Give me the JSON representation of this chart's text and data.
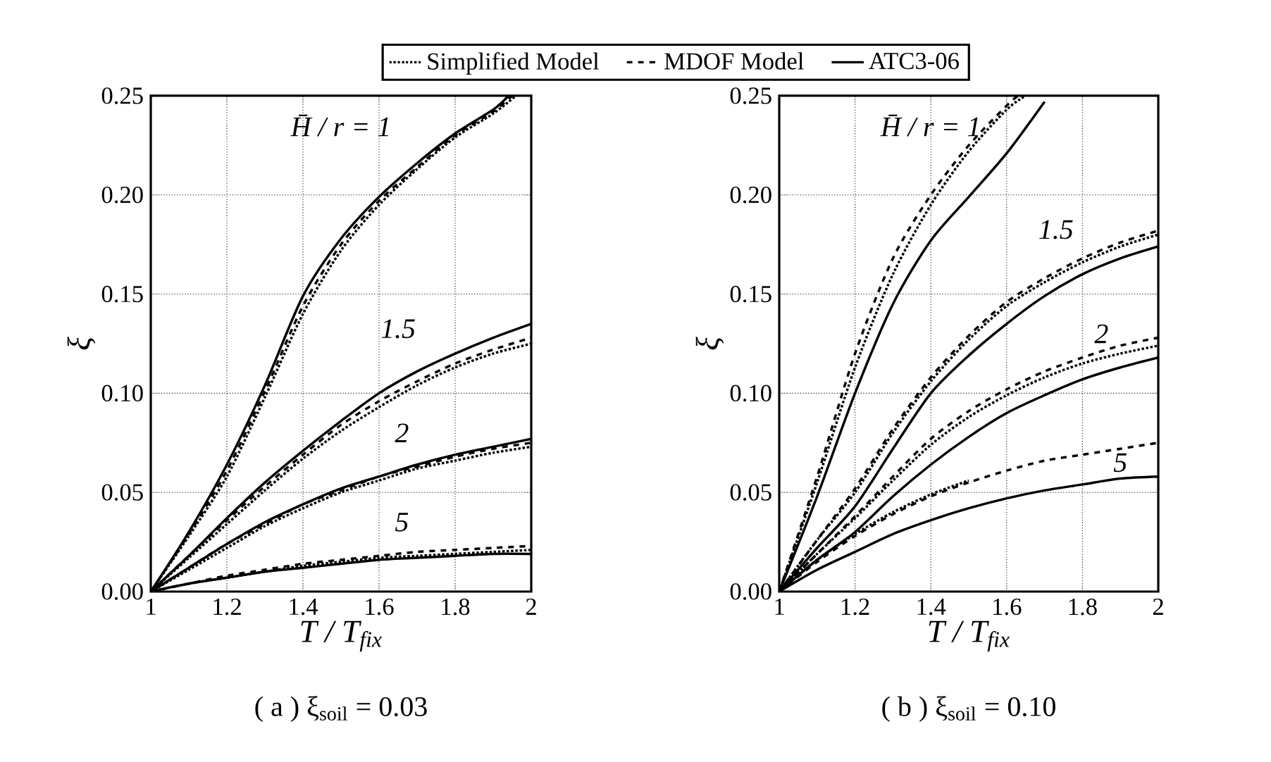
{
  "chart_data": [
    {
      "type": "line",
      "title": "( a )  ξ$_{soil}$ = 0.03",
      "xlabel": "T / T$_{fix}$",
      "ylabel": "ξ",
      "xlim": [
        1,
        2
      ],
      "ylim": [
        0,
        0.25
      ],
      "xticks": [
        1,
        1.2,
        1.4,
        1.6,
        1.8,
        2
      ],
      "yticks": [
        {
          "value": 0,
          "label": "0.00"
        },
        {
          "value": 0.05,
          "label": "0.05"
        },
        {
          "value": 0.1,
          "label": "0.10"
        },
        {
          "value": 0.15,
          "label": "0.15"
        },
        {
          "value": 0.2,
          "label": "0.20"
        },
        {
          "value": 0.25,
          "label": "0.25"
        }
      ],
      "grid": true,
      "legend": "top",
      "marker": "none",
      "annotations": [
        "H̄ / r = 1",
        "1.5",
        "2",
        "5"
      ],
      "series": [
        {
          "name": "Simplified Model",
          "color": "#000000",
          "line_style": "dotted",
          "x": [
            1,
            1.1,
            1.2,
            1.3,
            1.4,
            1.5,
            1.6,
            1.7,
            1.8,
            1.9,
            1.96
          ],
          "values": [
            0,
            0.028,
            0.058,
            0.098,
            0.14,
            0.172,
            0.195,
            0.213,
            0.229,
            0.241,
            0.25
          ]
        },
        {
          "name": "MDOF Model",
          "color": "#000000",
          "line_style": "dashed",
          "x": [
            1,
            1.1,
            1.2,
            1.3,
            1.4,
            1.5,
            1.6,
            1.7,
            1.8,
            1.9,
            1.95
          ],
          "values": [
            0,
            0.029,
            0.061,
            0.101,
            0.144,
            0.175,
            0.197,
            0.214,
            0.23,
            0.242,
            0.25
          ]
        },
        {
          "name": "ATC3-06",
          "color": "#000000",
          "line_style": "solid",
          "x": [
            1,
            1.1,
            1.2,
            1.3,
            1.4,
            1.5,
            1.6,
            1.7,
            1.8,
            1.9,
            1.94
          ],
          "values": [
            0,
            0.03,
            0.064,
            0.104,
            0.149,
            0.178,
            0.199,
            0.216,
            0.231,
            0.243,
            0.25
          ]
        },
        {
          "color": "#000000",
          "line_style": "dotted",
          "x": [
            1,
            1.1,
            1.2,
            1.3,
            1.4,
            1.5,
            1.6,
            1.7,
            1.8,
            1.9,
            2
          ],
          "values": [
            0,
            0.017,
            0.034,
            0.051,
            0.067,
            0.081,
            0.093,
            0.104,
            0.113,
            0.12,
            0.125
          ]
        },
        {
          "color": "#000000",
          "line_style": "dashed",
          "x": [
            1,
            1.1,
            1.2,
            1.3,
            1.4,
            1.5,
            1.6,
            1.7,
            1.8,
            1.9,
            2
          ],
          "values": [
            0,
            0.018,
            0.036,
            0.053,
            0.069,
            0.084,
            0.096,
            0.106,
            0.115,
            0.122,
            0.128
          ]
        },
        {
          "color": "#000000",
          "line_style": "solid",
          "x": [
            1,
            1.1,
            1.2,
            1.3,
            1.4,
            1.5,
            1.6,
            1.7,
            1.8,
            1.9,
            2
          ],
          "values": [
            0,
            0.018,
            0.037,
            0.055,
            0.071,
            0.086,
            0.1,
            0.111,
            0.12,
            0.128,
            0.135
          ]
        },
        {
          "color": "#000000",
          "line_style": "dotted",
          "x": [
            1,
            1.1,
            1.2,
            1.3,
            1.4,
            1.5,
            1.6,
            1.7,
            1.8,
            1.9,
            2
          ],
          "values": [
            0,
            0.011,
            0.022,
            0.033,
            0.042,
            0.05,
            0.056,
            0.062,
            0.066,
            0.07,
            0.073
          ]
        },
        {
          "color": "#000000",
          "line_style": "dashed",
          "x": [
            1,
            1.1,
            1.2,
            1.3,
            1.4,
            1.5,
            1.6,
            1.7,
            1.8,
            1.9,
            2
          ],
          "values": [
            0,
            0.012,
            0.024,
            0.034,
            0.044,
            0.051,
            0.058,
            0.063,
            0.068,
            0.072,
            0.075
          ]
        },
        {
          "color": "#000000",
          "line_style": "solid",
          "x": [
            1,
            1.1,
            1.2,
            1.3,
            1.4,
            1.5,
            1.6,
            1.7,
            1.8,
            1.9,
            2
          ],
          "values": [
            0,
            0.012,
            0.024,
            0.035,
            0.044,
            0.052,
            0.058,
            0.064,
            0.069,
            0.073,
            0.077
          ]
        },
        {
          "color": "#000000",
          "line_style": "dotted",
          "x": [
            1,
            1.1,
            1.2,
            1.3,
            1.4,
            1.5,
            1.6,
            1.7,
            1.8,
            1.9,
            2
          ],
          "values": [
            0,
            0.004,
            0.007,
            0.01,
            0.013,
            0.015,
            0.017,
            0.018,
            0.019,
            0.02,
            0.021
          ]
        },
        {
          "color": "#000000",
          "line_style": "dashed",
          "x": [
            1,
            1.1,
            1.2,
            1.3,
            1.4,
            1.5,
            1.6,
            1.7,
            1.8,
            1.9,
            2
          ],
          "values": [
            0,
            0.004,
            0.008,
            0.011,
            0.014,
            0.016,
            0.018,
            0.02,
            0.021,
            0.022,
            0.023
          ]
        },
        {
          "color": "#000000",
          "line_style": "solid",
          "x": [
            1,
            1.1,
            1.2,
            1.3,
            1.4,
            1.5,
            1.6,
            1.7,
            1.8,
            1.9,
            2
          ],
          "values": [
            0,
            0.004,
            0.007,
            0.01,
            0.012,
            0.014,
            0.016,
            0.017,
            0.018,
            0.019,
            0.019
          ]
        }
      ]
    },
    {
      "type": "line",
      "title": "( b )  ξ$_{soil}$ = 0.10",
      "xlabel": "T / T$_{fix}$",
      "ylabel": "ξ",
      "xlim": [
        1,
        2
      ],
      "ylim": [
        0,
        0.25
      ],
      "xticks": [
        1,
        1.2,
        1.4,
        1.6,
        1.8,
        2
      ],
      "yticks": [
        {
          "value": 0,
          "label": "0.00"
        },
        {
          "value": 0.05,
          "label": "0.05"
        },
        {
          "value": 0.1,
          "label": "0.10"
        },
        {
          "value": 0.15,
          "label": "0.15"
        },
        {
          "value": 0.2,
          "label": "0.20"
        },
        {
          "value": 0.25,
          "label": "0.25"
        }
      ],
      "grid": true,
      "marker": "none",
      "annotations": [
        "H̄ / r = 1",
        "1.5",
        "2",
        "5"
      ],
      "series": [
        {
          "color": "#000000",
          "line_style": "dotted",
          "x": [
            1,
            1.1,
            1.2,
            1.3,
            1.4,
            1.5,
            1.6,
            1.65
          ],
          "values": [
            0,
            0.055,
            0.113,
            0.16,
            0.195,
            0.222,
            0.243,
            0.25
          ]
        },
        {
          "color": "#000000",
          "line_style": "dashed",
          "x": [
            1,
            1.1,
            1.2,
            1.3,
            1.4,
            1.5,
            1.6,
            1.63
          ],
          "values": [
            0,
            0.058,
            0.12,
            0.168,
            0.2,
            0.225,
            0.245,
            0.25
          ]
        },
        {
          "color": "#000000",
          "line_style": "solid",
          "x": [
            1,
            1.1,
            1.2,
            1.3,
            1.4,
            1.5,
            1.6,
            1.7
          ],
          "values": [
            0,
            0.048,
            0.1,
            0.145,
            0.177,
            0.199,
            0.221,
            0.247
          ]
        },
        {
          "color": "#000000",
          "line_style": "dotted",
          "x": [
            1,
            1.1,
            1.2,
            1.3,
            1.4,
            1.5,
            1.6,
            1.7,
            1.8,
            1.9,
            2
          ],
          "values": [
            0,
            0.026,
            0.05,
            0.08,
            0.106,
            0.127,
            0.144,
            0.156,
            0.166,
            0.174,
            0.18
          ]
        },
        {
          "color": "#000000",
          "line_style": "dashed",
          "x": [
            1,
            1.1,
            1.2,
            1.3,
            1.4,
            1.5,
            1.6,
            1.7,
            1.8,
            1.9,
            2
          ],
          "values": [
            0,
            0.026,
            0.052,
            0.082,
            0.108,
            0.129,
            0.146,
            0.158,
            0.168,
            0.176,
            0.182
          ]
        },
        {
          "color": "#000000",
          "line_style": "solid",
          "x": [
            1,
            1.1,
            1.2,
            1.3,
            1.4,
            1.5,
            1.6,
            1.7,
            1.8,
            1.9,
            2
          ],
          "values": [
            0,
            0.022,
            0.043,
            0.072,
            0.1,
            0.119,
            0.135,
            0.149,
            0.16,
            0.168,
            0.174
          ]
        },
        {
          "color": "#000000",
          "line_style": "dotted",
          "x": [
            1,
            1.1,
            1.2,
            1.3,
            1.4,
            1.5,
            1.6,
            1.7,
            1.8,
            1.9,
            2
          ],
          "values": [
            0,
            0.019,
            0.037,
            0.056,
            0.074,
            0.088,
            0.099,
            0.108,
            0.115,
            0.12,
            0.124
          ]
        },
        {
          "color": "#000000",
          "line_style": "dashed",
          "x": [
            1,
            1.1,
            1.2,
            1.3,
            1.4,
            1.5,
            1.6,
            1.7,
            1.8,
            1.9,
            2
          ],
          "values": [
            0,
            0.019,
            0.038,
            0.058,
            0.077,
            0.091,
            0.102,
            0.111,
            0.118,
            0.124,
            0.128
          ]
        },
        {
          "color": "#000000",
          "line_style": "solid",
          "x": [
            1,
            1.1,
            1.2,
            1.3,
            1.4,
            1.5,
            1.6,
            1.7,
            1.8,
            1.9,
            2
          ],
          "values": [
            0,
            0.016,
            0.03,
            0.048,
            0.064,
            0.078,
            0.09,
            0.099,
            0.107,
            0.113,
            0.118
          ]
        },
        {
          "color": "#000000",
          "line_style": "dotted",
          "x": [
            1,
            1.1,
            1.2,
            1.3,
            1.4,
            1.5
          ],
          "values": [
            0,
            0.016,
            0.029,
            0.04,
            0.049,
            0.056
          ]
        },
        {
          "color": "#000000",
          "line_style": "dashed",
          "x": [
            1,
            1.1,
            1.2,
            1.3,
            1.4,
            1.5,
            1.6,
            1.7,
            1.8,
            1.9,
            2
          ],
          "values": [
            0,
            0.015,
            0.028,
            0.039,
            0.048,
            0.055,
            0.061,
            0.066,
            0.069,
            0.072,
            0.075
          ]
        },
        {
          "color": "#000000",
          "line_style": "solid",
          "x": [
            1,
            1.1,
            1.2,
            1.3,
            1.4,
            1.5,
            1.6,
            1.7,
            1.8,
            1.9,
            2
          ],
          "values": [
            0,
            0.011,
            0.02,
            0.029,
            0.036,
            0.042,
            0.047,
            0.051,
            0.054,
            0.057,
            0.058
          ]
        }
      ]
    }
  ]
}
